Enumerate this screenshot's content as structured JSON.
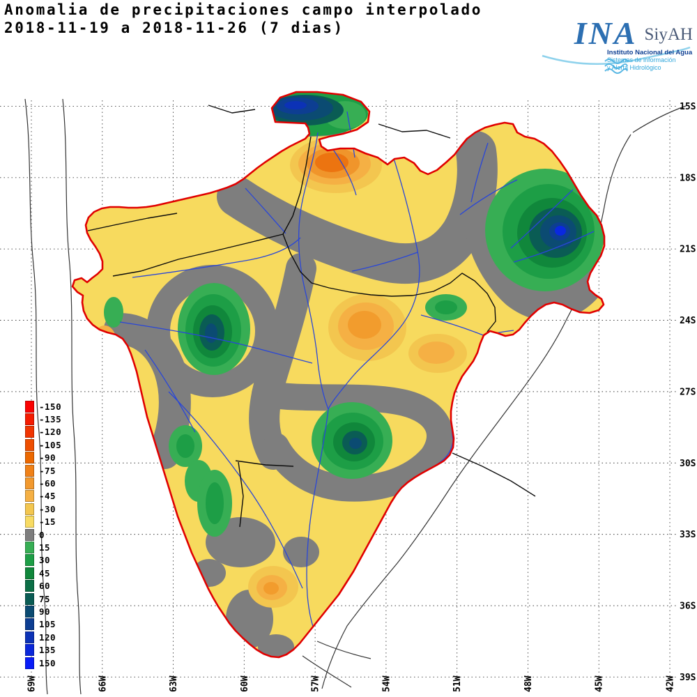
{
  "title": {
    "line1": "Anomalia de precipitaciones campo interpolado",
    "line2": "2018-11-19 a 2018-11-26 (7 dias)"
  },
  "logo": {
    "ina": "INA",
    "siyah": "SiyAH",
    "line1": "Instituto Nacional del Agua",
    "line2": "Sistemas de información",
    "line3": "y Alerta Hidrológico"
  },
  "axes": {
    "lat_labels": [
      "15S",
      "18S",
      "21S",
      "24S",
      "27S",
      "30S",
      "33S",
      "36S",
      "39S"
    ],
    "lon_labels": [
      "69W",
      "66W",
      "63W",
      "60W",
      "57W",
      "54W",
      "51W",
      "48W",
      "45W",
      "42W"
    ]
  },
  "legend": {
    "entries": [
      {
        "value": "-150",
        "color": "#FA0202"
      },
      {
        "value": "-135",
        "color": "#F51B00"
      },
      {
        "value": "-120",
        "color": "#F13400"
      },
      {
        "value": "-105",
        "color": "#EE4E00"
      },
      {
        "value": "-90",
        "color": "#EC6800"
      },
      {
        "value": "-75",
        "color": "#F08118"
      },
      {
        "value": "-60",
        "color": "#F2992E"
      },
      {
        "value": "-45",
        "color": "#F5B044"
      },
      {
        "value": "-30",
        "color": "#F3C64F"
      },
      {
        "value": "-15",
        "color": "#F8DB63"
      },
      {
        "value": "0",
        "color": "#7E7E7E"
      },
      {
        "value": "15",
        "color": "#37AE54"
      },
      {
        "value": "30",
        "color": "#1D9E46"
      },
      {
        "value": "45",
        "color": "#10873B"
      },
      {
        "value": "60",
        "color": "#0C6F46"
      },
      {
        "value": "75",
        "color": "#0A5C54"
      },
      {
        "value": "90",
        "color": "#0B4B72"
      },
      {
        "value": "105",
        "color": "#0D3E92"
      },
      {
        "value": "120",
        "color": "#0C32B6"
      },
      {
        "value": "135",
        "color": "#0A27DA"
      },
      {
        "value": "150",
        "color": "#081CF8"
      }
    ]
  },
  "colors": {
    "basin_outline": "#E00000",
    "rivers": "#2946D8",
    "zero_anomaly": "#7E7E7E",
    "base_field": "#F7DA5E"
  }
}
